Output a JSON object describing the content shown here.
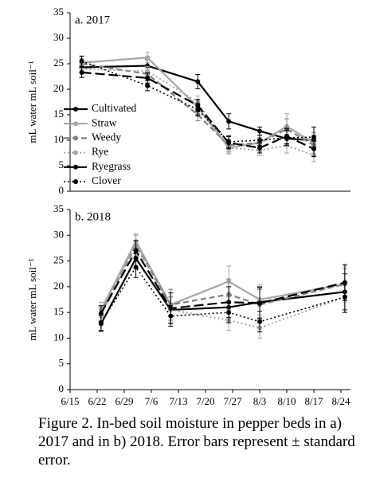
{
  "chart_data": [
    {
      "type": "line",
      "title": "a. 2017",
      "y_label": "mL water mL soil⁻¹",
      "x": [
        "6/18",
        "7/5",
        "7/18",
        "7/26",
        "8/3",
        "8/10",
        "8/17"
      ],
      "xlim": [
        "6/15",
        "8/24"
      ],
      "ylim": [
        0,
        35
      ],
      "yticks": [
        0,
        5,
        10,
        15,
        20,
        25,
        30,
        35
      ],
      "legend": "lower left",
      "series": [
        {
          "name": "Cultivated",
          "color": "#000000",
          "line_style": "solid",
          "width": 2.2,
          "values": [
            24.3,
            24.6,
            21.5,
            13.7,
            11.8,
            10.3,
            10.0
          ],
          "errors": [
            1.2,
            1.2,
            1.4,
            1.5,
            0.8,
            1.5,
            1.5
          ]
        },
        {
          "name": "Straw",
          "color": "#a6a6a6",
          "line_style": "solid",
          "width": 2.2,
          "values": [
            25.2,
            26.2,
            16.5,
            8.5,
            9.5,
            12.7,
            9.5
          ],
          "errors": [
            1.2,
            1.0,
            1.5,
            1.2,
            1.5,
            2.5,
            2.0
          ]
        },
        {
          "name": "Weedy",
          "color": "#808080",
          "line_style": "dashed",
          "width": 2.2,
          "values": [
            25.0,
            23.0,
            15.0,
            9.0,
            9.5,
            12.2,
            9.0
          ],
          "errors": [
            1.0,
            1.2,
            1.2,
            1.2,
            1.0,
            2.0,
            2.0
          ]
        },
        {
          "name": "Rye",
          "color": "#a6a6a6",
          "line_style": "dotted",
          "width": 2,
          "values": [
            24.0,
            23.5,
            17.5,
            8.5,
            8.0,
            9.0,
            7.0
          ],
          "errors": [
            1.0,
            1.0,
            1.2,
            1.0,
            1.0,
            1.5,
            1.2
          ]
        },
        {
          "name": "Ryegrass",
          "color": "#000000",
          "line_style": "long-dashed",
          "width": 2.2,
          "values": [
            23.3,
            22.2,
            16.8,
            9.5,
            8.5,
            10.8,
            8.3
          ],
          "errors": [
            1.0,
            1.0,
            1.2,
            1.2,
            1.0,
            1.5,
            1.5
          ]
        },
        {
          "name": "Clover",
          "color": "#000000",
          "line_style": "dotted",
          "width": 1.6,
          "values": [
            25.5,
            20.7,
            16.0,
            9.7,
            10.0,
            10.5,
            10.6
          ],
          "errors": [
            1.0,
            1.0,
            1.2,
            1.2,
            1.0,
            1.5,
            2.0
          ]
        }
      ]
    },
    {
      "type": "line",
      "title": "b. 2018",
      "y_label": "mL water mL soil⁻¹",
      "x": [
        "6/23",
        "7/2",
        "7/11",
        "7/26",
        "8/3",
        "8/25"
      ],
      "xlim": [
        "6/15",
        "8/24"
      ],
      "ylim": [
        0,
        35
      ],
      "yticks": [
        0,
        5,
        10,
        15,
        20,
        25,
        30,
        35
      ],
      "xticks": [
        "6/15",
        "6/22",
        "6/29",
        "7/6",
        "7/13",
        "7/20",
        "7/27",
        "8/3",
        "8/10",
        "8/17",
        "8/24"
      ],
      "series": [
        {
          "name": "Cultivated",
          "color": "#000000",
          "line_style": "solid",
          "width": 2.2,
          "values": [
            12.8,
            25.5,
            15.5,
            16.0,
            17.0,
            19.0
          ],
          "errors": [
            1.5,
            2.0,
            2.5,
            2.5,
            3.0,
            3.5
          ]
        },
        {
          "name": "Straw",
          "color": "#a6a6a6",
          "line_style": "solid",
          "width": 2.2,
          "values": [
            15.5,
            28.8,
            16.5,
            21.0,
            17.5,
            20.5
          ],
          "errors": [
            1.5,
            1.5,
            3.0,
            3.0,
            3.0,
            3.5
          ]
        },
        {
          "name": "Weedy",
          "color": "#808080",
          "line_style": "dashed",
          "width": 2.2,
          "values": [
            14.8,
            28.0,
            16.5,
            18.5,
            16.5,
            20.5
          ],
          "errors": [
            1.5,
            2.0,
            3.0,
            3.0,
            3.0,
            3.0
          ]
        },
        {
          "name": "Rye",
          "color": "#a6a6a6",
          "line_style": "dotted",
          "width": 2,
          "values": [
            14.5,
            28.5,
            15.5,
            13.5,
            12.0,
            18.0
          ],
          "errors": [
            1.5,
            1.5,
            2.5,
            2.0,
            2.0,
            3.0
          ]
        },
        {
          "name": "Ryegrass",
          "color": "#000000",
          "line_style": "long-dashed",
          "width": 2.2,
          "values": [
            14.8,
            27.0,
            15.8,
            17.0,
            16.8,
            20.8
          ],
          "errors": [
            1.5,
            2.0,
            3.0,
            3.0,
            3.0,
            3.5
          ]
        },
        {
          "name": "Clover",
          "color": "#000000",
          "line_style": "dotted",
          "width": 1.6,
          "values": [
            13.0,
            23.8,
            14.3,
            15.0,
            13.2,
            18.0
          ],
          "errors": [
            1.5,
            2.0,
            2.0,
            2.0,
            2.0,
            3.0
          ]
        }
      ]
    }
  ],
  "caption": "Figure 2. In-bed soil moisture in pepper beds in a) 2017 and in b) 2018. Error bars represent ± standard error."
}
